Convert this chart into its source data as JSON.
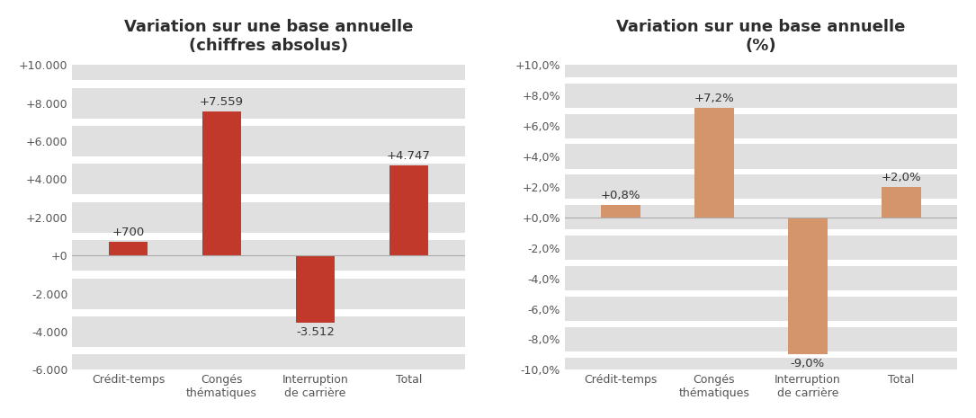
{
  "chart1": {
    "title": "Variation sur une base annuelle\n(chiffres absolus)",
    "categories": [
      "Crédit-temps",
      "Congés\nthématiques",
      "Interruption\nde carrière",
      "Total"
    ],
    "values": [
      700,
      7559,
      -3512,
      4747
    ],
    "labels": [
      "+700",
      "+7.559",
      "-3.512",
      "+4.747"
    ],
    "bar_color": "#c0392b",
    "ylim": [
      -6000,
      10000
    ],
    "yticks": [
      -6000,
      -4000,
      -2000,
      0,
      2000,
      4000,
      6000,
      8000,
      10000
    ],
    "ytick_labels": [
      "-6.000",
      "-4.000",
      "-2.000",
      "+0",
      "+2.000",
      "+4.000",
      "+6.000",
      "+8.000",
      "+10.000"
    ],
    "stripe_half": 800
  },
  "chart2": {
    "title": "Variation sur une base annuelle\n(%)",
    "categories": [
      "Crédit-temps",
      "Congés\nthématiques",
      "Interruption\nde carrière",
      "Total"
    ],
    "values": [
      0.8,
      7.2,
      -9.0,
      2.0
    ],
    "labels": [
      "+0,8%",
      "+7,2%",
      "-9,0%",
      "+2,0%"
    ],
    "bar_color": "#d4956a",
    "ylim": [
      -10.0,
      10.0
    ],
    "yticks": [
      -10.0,
      -8.0,
      -6.0,
      -4.0,
      -2.0,
      0.0,
      2.0,
      4.0,
      6.0,
      8.0,
      10.0
    ],
    "ytick_labels": [
      "-10,0%",
      "-8,0%",
      "-6,0%",
      "-4,0%",
      "-2,0%",
      "+0,0%",
      "+2,0%",
      "+4,0%",
      "+6,0%",
      "+8,0%",
      "+10,0%"
    ],
    "stripe_half": 0.8
  },
  "background_color": "#ffffff",
  "stripe_color": "#e0e0e0",
  "title_fontsize": 13,
  "label_fontsize": 9.5,
  "tick_fontsize": 9,
  "figsize": [
    10.85,
    4.65
  ],
  "dpi": 100
}
